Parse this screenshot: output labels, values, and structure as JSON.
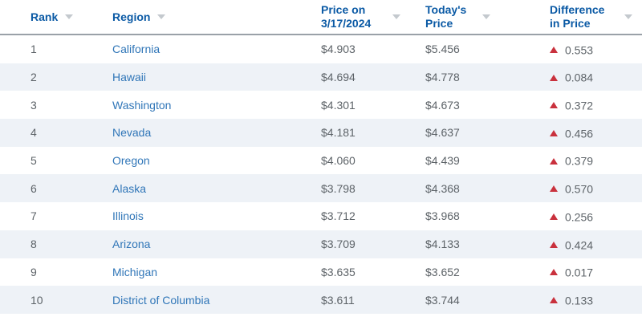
{
  "table": {
    "columns": [
      {
        "label": "Rank",
        "sortable": true
      },
      {
        "label": "Region",
        "sortable": true
      },
      {
        "label": "Price on 3/17/2024",
        "sortable": true
      },
      {
        "label": "Today's Price",
        "sortable": true
      },
      {
        "label": "Difference in Price",
        "sortable": true
      }
    ],
    "rows": [
      {
        "rank": "1",
        "region": "California",
        "price_prev": "$4.903",
        "price_today": "$5.456",
        "difference": "0.553",
        "trend": "up"
      },
      {
        "rank": "2",
        "region": "Hawaii",
        "price_prev": "$4.694",
        "price_today": "$4.778",
        "difference": "0.084",
        "trend": "up"
      },
      {
        "rank": "3",
        "region": "Washington",
        "price_prev": "$4.301",
        "price_today": "$4.673",
        "difference": "0.372",
        "trend": "up"
      },
      {
        "rank": "4",
        "region": "Nevada",
        "price_prev": "$4.181",
        "price_today": "$4.637",
        "difference": "0.456",
        "trend": "up"
      },
      {
        "rank": "5",
        "region": "Oregon",
        "price_prev": "$4.060",
        "price_today": "$4.439",
        "difference": "0.379",
        "trend": "up"
      },
      {
        "rank": "6",
        "region": "Alaska",
        "price_prev": "$3.798",
        "price_today": "$4.368",
        "difference": "0.570",
        "trend": "up"
      },
      {
        "rank": "7",
        "region": "Illinois",
        "price_prev": "$3.712",
        "price_today": "$3.968",
        "difference": "0.256",
        "trend": "up"
      },
      {
        "rank": "8",
        "region": "Arizona",
        "price_prev": "$3.709",
        "price_today": "$4.133",
        "difference": "0.424",
        "trend": "up"
      },
      {
        "rank": "9",
        "region": "Michigan",
        "price_prev": "$3.635",
        "price_today": "$3.652",
        "difference": "0.017",
        "trend": "up"
      },
      {
        "rank": "10",
        "region": "District of Columbia",
        "price_prev": "$3.611",
        "price_today": "$3.744",
        "difference": "0.133",
        "trend": "up"
      }
    ]
  },
  "icons": {
    "sort": "chevron-down-icon",
    "trend_up": "triangle-up-icon"
  },
  "colors": {
    "header_text": "#0b5aa5",
    "region_link": "#3076b8",
    "body_text": "#5d6368",
    "row_stripe": "#eef2f7",
    "header_border": "#9aa1a8",
    "sort_arrow": "#c4c9ce",
    "trend_up_red": "#c9313d"
  }
}
